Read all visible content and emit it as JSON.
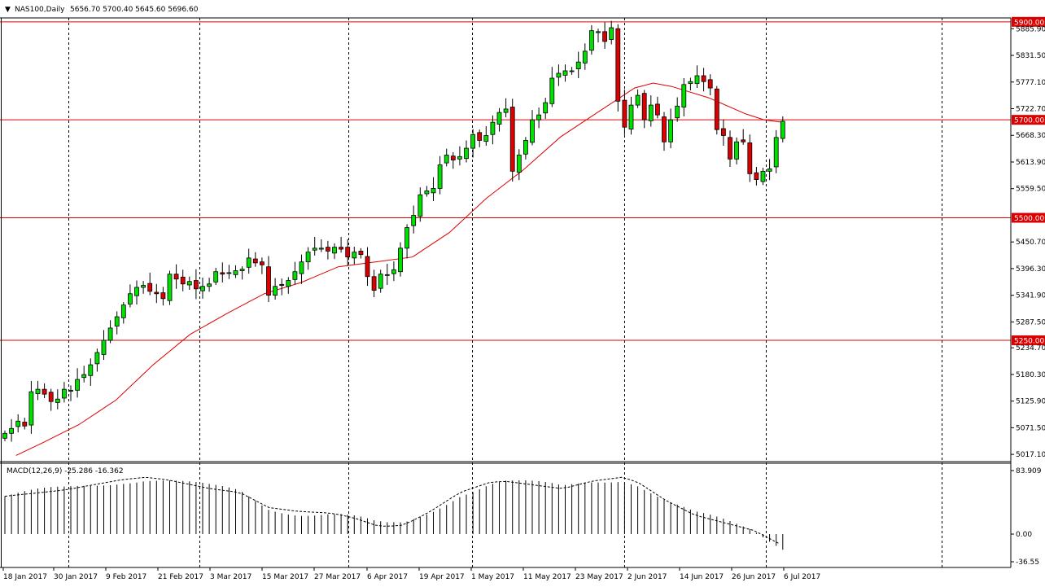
{
  "header": {
    "caret": "▼",
    "symbol": "NAS100,Daily",
    "ohlc": "5656.70 5700.40 5645.60 5696.60"
  },
  "macd_header": {
    "label": "MACD(12,26,9) -25.286 -16.362"
  },
  "colors": {
    "bull_body": "#00e000",
    "bear_body": "#dd0000",
    "wick": "#000000",
    "ma_line": "#dd0000",
    "level_line": "#dd0000",
    "level_tag": "#dd0000",
    "grid": "#000000",
    "macd_hist": "#000000",
    "macd_signal": "#000000"
  },
  "chart_data": [
    {
      "type": "candlestick",
      "symbol": "NAS100",
      "timeframe": "Daily",
      "y_ticks": [
        "5885.90",
        "5831.50",
        "5777.10",
        "5722.70",
        "5668.30",
        "5613.90",
        "5559.50",
        "5450.70",
        "5396.30",
        "5341.90",
        "5287.50",
        "5234.70",
        "5180.30",
        "5125.90",
        "5071.50",
        "5017.10"
      ],
      "ylim": [
        5004,
        5908
      ],
      "x_ticks": [
        "18 Jan 2017",
        "30 Jan 2017",
        "9 Feb 2017",
        "21 Feb 2017",
        "3 Mar 2017",
        "15 Mar 2017",
        "27 Mar 2017",
        "6 Apr 2017",
        "19 Apr 2017",
        "1 May 2017",
        "11 May 2017",
        "23 May 2017",
        "2 Jun 2017",
        "14 Jun 2017",
        "26 Jun 2017",
        "6 Jul 2017"
      ],
      "horizontal_levels": [
        "5900.00",
        "5700.00",
        "5500.00",
        "5250.00"
      ],
      "moving_average": {
        "anchors": [
          [
            3,
            5015
          ],
          [
            10,
            5040
          ],
          [
            20,
            5078
          ],
          [
            30,
            5128
          ],
          [
            40,
            5200
          ],
          [
            50,
            5262
          ],
          [
            60,
            5305
          ],
          [
            70,
            5345
          ],
          [
            80,
            5368
          ],
          [
            90,
            5400
          ],
          [
            100,
            5410
          ],
          [
            110,
            5420
          ],
          [
            120,
            5470
          ],
          [
            130,
            5540
          ],
          [
            140,
            5598
          ],
          [
            150,
            5665
          ],
          [
            160,
            5715
          ],
          [
            170,
            5765
          ],
          [
            175,
            5775
          ],
          [
            180,
            5768
          ],
          [
            190,
            5745
          ],
          [
            200,
            5712
          ],
          [
            205,
            5700
          ],
          [
            210,
            5695
          ]
        ]
      },
      "closes": [
        5060,
        5070,
        5085,
        5075,
        5145,
        5150,
        5140,
        5125,
        5130,
        5150,
        5148,
        5170,
        5180,
        5200,
        5225,
        5250,
        5275,
        5298,
        5322,
        5345,
        5358,
        5362,
        5350,
        5345,
        5335,
        5385,
        5375,
        5365,
        5370,
        5355,
        5360,
        5365,
        5390,
        5385,
        5388,
        5392,
        5395,
        5418,
        5408,
        5404,
        5342,
        5360,
        5362,
        5372,
        5390,
        5410,
        5430,
        5438,
        5438,
        5432,
        5440,
        5436,
        5420,
        5430,
        5425,
        5380,
        5352,
        5385,
        5384,
        5394,
        5438,
        5480,
        5505,
        5547,
        5555,
        5560,
        5608,
        5628,
        5618,
        5625,
        5642,
        5670,
        5658,
        5668,
        5695,
        5715,
        5722,
        5595,
        5628,
        5658,
        5700,
        5710,
        5735,
        5785,
        5795,
        5800,
        5800,
        5818,
        5840,
        5882,
        5880,
        5860,
        5888,
        5738,
        5685,
        5730,
        5750,
        5700,
        5730,
        5710,
        5655,
        5700,
        5728,
        5772,
        5778,
        5790,
        5778,
        5765,
        5680,
        5668,
        5620,
        5655,
        5655,
        5590,
        5578,
        5595,
        5600,
        5664,
        5697
      ],
      "macd": {
        "histogram_range": [
          -36.55,
          83.909
        ],
        "y_ticks": [
          "83.909",
          "0.00",
          "-36.55"
        ],
        "signal_anchors": [
          [
            0,
            50
          ],
          [
            20,
            58
          ],
          [
            40,
            72
          ],
          [
            48,
            75
          ],
          [
            55,
            72
          ],
          [
            70,
            60
          ],
          [
            80,
            55
          ],
          [
            85,
            45
          ],
          [
            90,
            35
          ],
          [
            100,
            30
          ],
          [
            110,
            28
          ],
          [
            115,
            25
          ],
          [
            120,
            20
          ],
          [
            126,
            12
          ],
          [
            130,
            10
          ],
          [
            136,
            12
          ],
          [
            145,
            30
          ],
          [
            155,
            55
          ],
          [
            165,
            68
          ],
          [
            170,
            70
          ],
          [
            180,
            65
          ],
          [
            190,
            60
          ],
          [
            200,
            70
          ],
          [
            210,
            75
          ],
          [
            215,
            70
          ],
          [
            225,
            45
          ],
          [
            235,
            25
          ],
          [
            245,
            15
          ],
          [
            255,
            5
          ],
          [
            265,
            -15
          ]
        ]
      }
    }
  ]
}
